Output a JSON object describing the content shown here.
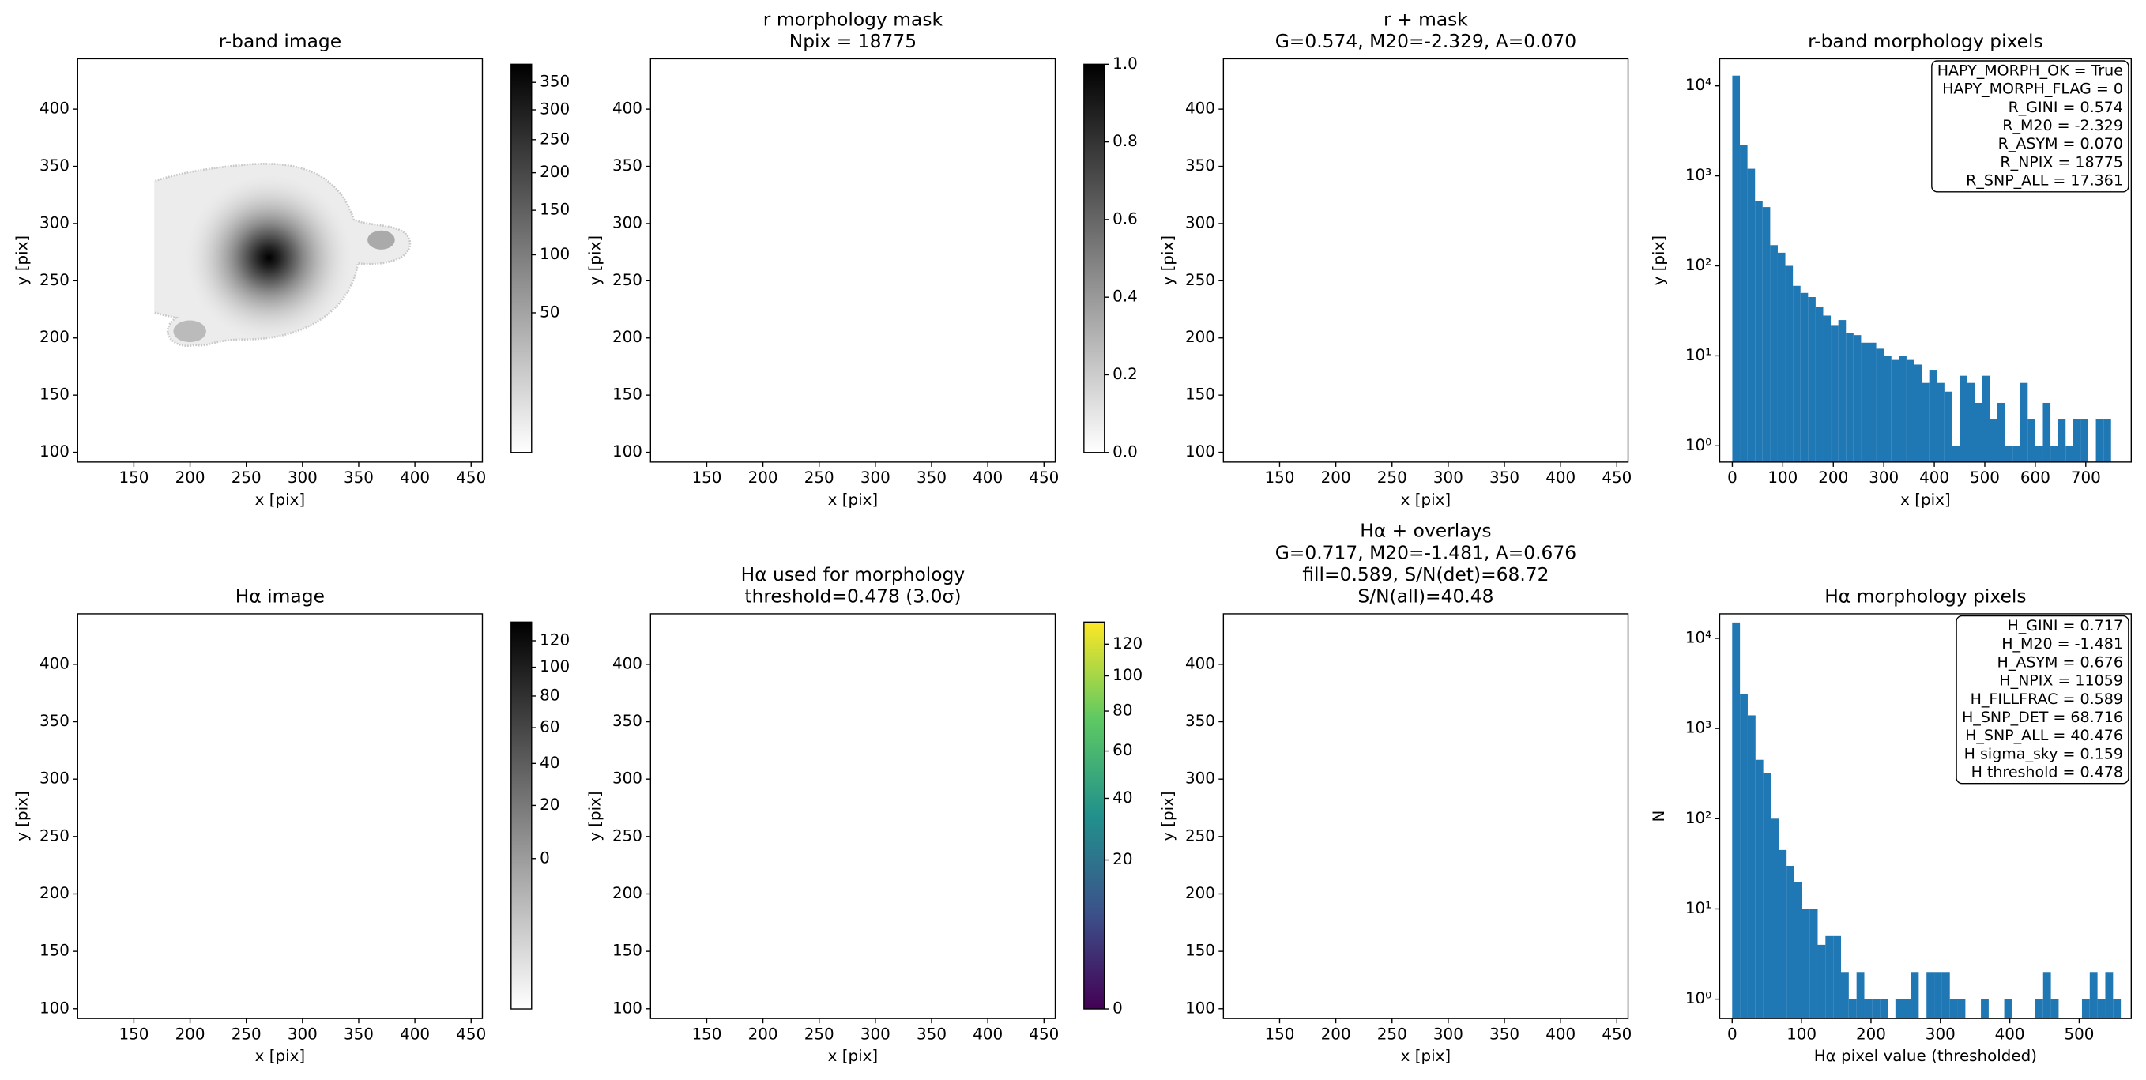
{
  "chart_data": [
    {
      "type": "image",
      "title": [
        "r-band image"
      ],
      "xlabel": "x [pix]",
      "ylabel": "y [pix]",
      "xlim": [
        100,
        460
      ],
      "ylim": [
        91.5,
        444
      ],
      "xticks": [
        150,
        200,
        250,
        300,
        350,
        400,
        450
      ],
      "yticks": [
        100,
        150,
        200,
        250,
        300,
        350,
        400
      ],
      "colorbar": {
        "lim": [
          0.2,
          385
        ],
        "scale": "sqrt",
        "colors": [
          "#ffffff",
          "#000000"
        ],
        "ticks": [
          50,
          100,
          150,
          200,
          250,
          300,
          350
        ]
      }
    },
    {
      "type": "image",
      "title": [
        "r morphology mask",
        "Npix = 18775"
      ],
      "xlabel": "x [pix]",
      "ylabel": "y [pix]",
      "xlim": [
        100,
        460
      ],
      "ylim": [
        91.5,
        444
      ],
      "xticks": [
        150,
        200,
        250,
        300,
        350,
        400,
        450
      ],
      "yticks": [
        100,
        150,
        200,
        250,
        300,
        350,
        400
      ],
      "colorbar": {
        "lim": [
          0,
          1
        ],
        "scale": "linear",
        "colors": [
          "#ffffff",
          "#000000"
        ],
        "ticks": [
          {
            "value": 0,
            "label": "0.0"
          },
          0.2,
          0.4,
          0.6,
          0.8,
          {
            "value": 1,
            "label": "1.0"
          }
        ]
      }
    },
    {
      "type": "image",
      "title": [
        "r + mask",
        "G=0.574, M20=-2.329, A=0.070"
      ],
      "xlabel": "x [pix]",
      "ylabel": "y [pix]",
      "xlim": [
        100,
        460
      ],
      "ylim": [
        91.5,
        444
      ],
      "xticks": [
        150,
        200,
        250,
        300,
        350,
        400,
        450
      ],
      "yticks": [
        100,
        150,
        200,
        250,
        300,
        350,
        400
      ]
    },
    {
      "type": "histogram",
      "title": [
        "r-band morphology pixels"
      ],
      "xlabel": "x [pix]",
      "ylabel": "y [pix]",
      "color": "#1f77b4",
      "log_y": true,
      "bins": [
        0,
        15,
        30,
        45,
        60,
        75,
        90,
        105,
        120,
        135,
        150,
        165,
        180,
        195,
        210,
        225,
        240,
        255,
        270,
        285,
        300,
        315,
        330,
        345,
        360,
        375,
        390,
        405,
        420,
        435,
        450,
        465,
        480,
        495,
        510,
        525,
        540,
        555,
        570,
        585,
        600,
        615,
        630,
        645,
        660,
        675,
        690,
        705,
        720,
        735,
        750
      ],
      "counts": [
        13000,
        2200,
        1200,
        520,
        450,
        170,
        140,
        100,
        60,
        50,
        45,
        35,
        28,
        22,
        25,
        18,
        17,
        14,
        14,
        12,
        10,
        9,
        10,
        9,
        8,
        5,
        7,
        5,
        4,
        1,
        6,
        5,
        3,
        6,
        2,
        3,
        1,
        1,
        5,
        2,
        1,
        3,
        1,
        2,
        1,
        2,
        2,
        0,
        2,
        2
      ],
      "xlim": [
        -25,
        790
      ],
      "ylim": [
        0.66,
        20000
      ],
      "xticks": [
        0,
        100,
        200,
        300,
        400,
        500,
        600,
        700
      ],
      "yticks": [
        {
          "value": 1,
          "label": "10⁰"
        },
        {
          "value": 10,
          "label": "10¹"
        },
        {
          "value": 100,
          "label": "10²"
        },
        {
          "value": 1000,
          "label": "10³"
        },
        {
          "value": 10000,
          "label": "10⁴"
        }
      ],
      "annotation": [
        "HAPY_MORPH_OK = True",
        "HAPY_MORPH_FLAG = 0",
        "R_GINI = 0.574",
        "R_M20 = -2.329",
        "R_ASYM = 0.070",
        "R_NPIX = 18775",
        "R_SNP_ALL = 17.361"
      ]
    },
    {
      "type": "image",
      "title": [
        "Hα image"
      ],
      "xlabel": "x [pix]",
      "ylabel": "y [pix]",
      "xlim": [
        100,
        460
      ],
      "ylim": [
        91.5,
        444
      ],
      "xticks": [
        150,
        200,
        250,
        300,
        350,
        400,
        450
      ],
      "yticks": [
        100,
        150,
        200,
        250,
        300,
        350,
        400
      ],
      "colorbar": {
        "lim": [
          -24,
          135
        ],
        "scale": "sqrt",
        "colors": [
          "#ffffff",
          "#000000"
        ],
        "ticks": [
          0,
          20,
          40,
          60,
          80,
          100,
          120
        ]
      }
    },
    {
      "type": "image",
      "title": [
        "Hα used for morphology",
        "threshold=0.478 (3.0σ)"
      ],
      "xlabel": "x [pix]",
      "ylabel": "y [pix]",
      "xlim": [
        100,
        460
      ],
      "ylim": [
        91.5,
        444
      ],
      "xticks": [
        150,
        200,
        250,
        300,
        350,
        400,
        450
      ],
      "yticks": [
        100,
        150,
        200,
        250,
        300,
        350,
        400
      ],
      "colorbar": {
        "lim": [
          0,
          135
        ],
        "scale": "sqrt",
        "colors": [
          "#440154",
          "#3b528b",
          "#21918c",
          "#5ec962",
          "#fde725"
        ],
        "ticks": [
          0,
          20,
          40,
          60,
          80,
          100,
          120
        ]
      }
    },
    {
      "type": "image",
      "title": [
        "Hα + overlays",
        "G=0.717, M20=-1.481, A=0.676",
        "fill=0.589, S/N(det)=68.72",
        "S/N(all)=40.48"
      ],
      "xlabel": "x [pix]",
      "ylabel": "y [pix]",
      "xlim": [
        100,
        460
      ],
      "ylim": [
        91.5,
        444
      ],
      "xticks": [
        150,
        200,
        250,
        300,
        350,
        400,
        450
      ],
      "yticks": [
        100,
        150,
        200,
        250,
        300,
        350,
        400
      ]
    },
    {
      "type": "histogram",
      "title": [
        "Hα morphology pixels"
      ],
      "xlabel": "Hα pixel value (thresholded)",
      "ylabel": "N",
      "color": "#1f77b4",
      "log_y": true,
      "bins": [
        0,
        11.2,
        22.4,
        33.6,
        44.8,
        56,
        67.2,
        78.4,
        89.6,
        100.8,
        112,
        123.2,
        134.4,
        145.6,
        156.8,
        168,
        179.2,
        190.4,
        201.6,
        212.8,
        224,
        235.2,
        246.4,
        257.6,
        268.8,
        280,
        291.2,
        302.4,
        313.6,
        324.8,
        336,
        347.2,
        358.4,
        369.6,
        380.8,
        392,
        403.2,
        414.4,
        425.6,
        436.8,
        448,
        459.2,
        470.4,
        481.6,
        492.8,
        504,
        515.2,
        526.4,
        537.6,
        548.8,
        560
      ],
      "counts": [
        15000,
        2400,
        1400,
        450,
        320,
        100,
        45,
        30,
        20,
        10,
        10,
        4,
        5,
        5,
        2,
        1,
        2,
        1,
        1,
        1,
        0,
        1,
        1,
        2,
        0,
        2,
        2,
        2,
        1,
        1,
        0,
        0,
        1,
        0,
        0,
        1,
        0,
        0,
        0,
        1,
        2,
        1,
        0,
        0,
        0,
        1,
        2,
        1,
        2,
        1
      ],
      "xlim": [
        -18,
        575
      ],
      "ylim": [
        0.61,
        18700
      ],
      "xticks": [
        0,
        100,
        200,
        300,
        400,
        500
      ],
      "yticks": [
        {
          "value": 1,
          "label": "10⁰"
        },
        {
          "value": 10,
          "label": "10¹"
        },
        {
          "value": 100,
          "label": "10²"
        },
        {
          "value": 1000,
          "label": "10³"
        },
        {
          "value": 10000,
          "label": "10⁴"
        }
      ],
      "annotation": [
        "H_GINI = 0.717",
        "H_M20 = -1.481",
        "H_ASYM = 0.676",
        "H_NPIX = 11059",
        "H_FILLFRAC = 0.589",
        "H_SNP_DET = 68.716",
        "H_SNP_ALL = 40.476",
        "H sigma_sky = 0.159",
        "H threshold = 0.478"
      ]
    }
  ]
}
